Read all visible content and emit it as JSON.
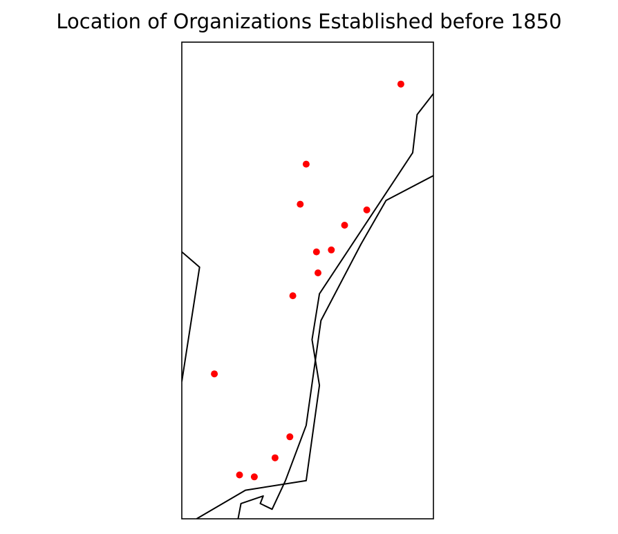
{
  "title": "Location of Organizations Established before 1850",
  "colors": {
    "marker": "#ff0000",
    "coastline": "#000000",
    "frame": "#000000",
    "background": "#ffffff"
  },
  "map": {
    "projection": "lon-lat",
    "lon_range": [
      -74.9,
      -73.2
    ],
    "lat_range": [
      40.0,
      42.5
    ],
    "coastlines": [
      [
        [
          -74.9,
          41.4
        ],
        [
          -74.78,
          41.32
        ],
        [
          -74.9,
          40.72
        ]
      ],
      [
        [
          -74.8,
          40.0
        ],
        [
          -74.47,
          40.15
        ],
        [
          -74.06,
          40.2
        ],
        [
          -73.97,
          40.7
        ],
        [
          -74.02,
          40.94
        ],
        [
          -73.97,
          41.18
        ],
        [
          -73.34,
          41.92
        ],
        [
          -73.31,
          42.12
        ],
        [
          -73.2,
          42.23
        ]
      ],
      [
        [
          -74.52,
          40.0
        ],
        [
          -74.5,
          40.08
        ],
        [
          -74.35,
          40.12
        ],
        [
          -74.37,
          40.08
        ],
        [
          -74.29,
          40.05
        ],
        [
          -74.2,
          40.2
        ],
        [
          -74.06,
          40.49
        ],
        [
          -73.96,
          41.04
        ],
        [
          -73.69,
          41.44
        ],
        [
          -73.52,
          41.67
        ],
        [
          -73.2,
          41.8
        ]
      ]
    ],
    "organizations": [
      {
        "lon": -73.42,
        "lat": 42.28
      },
      {
        "lon": -74.06,
        "lat": 41.86
      },
      {
        "lon": -74.1,
        "lat": 41.65
      },
      {
        "lon": -73.65,
        "lat": 41.62
      },
      {
        "lon": -73.8,
        "lat": 41.54
      },
      {
        "lon": -73.89,
        "lat": 41.41
      },
      {
        "lon": -73.99,
        "lat": 41.4
      },
      {
        "lon": -73.98,
        "lat": 41.29
      },
      {
        "lon": -74.15,
        "lat": 41.17
      },
      {
        "lon": -74.68,
        "lat": 40.76
      },
      {
        "lon": -74.17,
        "lat": 40.43
      },
      {
        "lon": -74.27,
        "lat": 40.32
      },
      {
        "lon": -74.51,
        "lat": 40.23
      },
      {
        "lon": -74.41,
        "lat": 40.22
      }
    ]
  }
}
